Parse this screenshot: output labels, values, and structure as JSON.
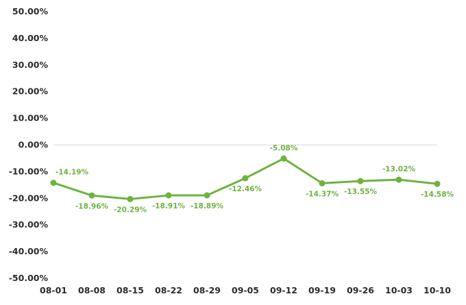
{
  "chart_data": {
    "type": "line",
    "title": "",
    "xlabel": "",
    "ylabel": "",
    "x": [
      "08-01",
      "08-08",
      "08-15",
      "08-22",
      "08-29",
      "09-05",
      "09-12",
      "09-19",
      "09-26",
      "10-03",
      "10-10"
    ],
    "series": [
      {
        "values": [
          -14.19,
          -18.96,
          -20.29,
          -18.91,
          -18.89,
          -12.46,
          -5.08,
          -14.37,
          -13.55,
          -13.02,
          -14.58
        ],
        "data_labels": [
          "-14.19%",
          "-18.96%",
          "-20.29%",
          "-18.91%",
          "-18.89%",
          "-12.46%",
          "-5.08%",
          "-14.37%",
          "-13.55%",
          "-13.02%",
          "-14.58%"
        ],
        "color": "#6db33f"
      }
    ],
    "ylim": [
      -50,
      50
    ],
    "yticks": [
      50,
      40,
      30,
      20,
      10,
      0,
      -10,
      -20,
      -30,
      -40,
      -50
    ],
    "ytick_labels": [
      "50.00%",
      "40.00%",
      "30.00%",
      "20.00%",
      "10.00%",
      "0.00%",
      "-10.00%",
      "-20.00%",
      "-30.00%",
      "-40.00%",
      "-50.00%"
    ],
    "grid": false,
    "zero_line": true,
    "legend": "none"
  }
}
